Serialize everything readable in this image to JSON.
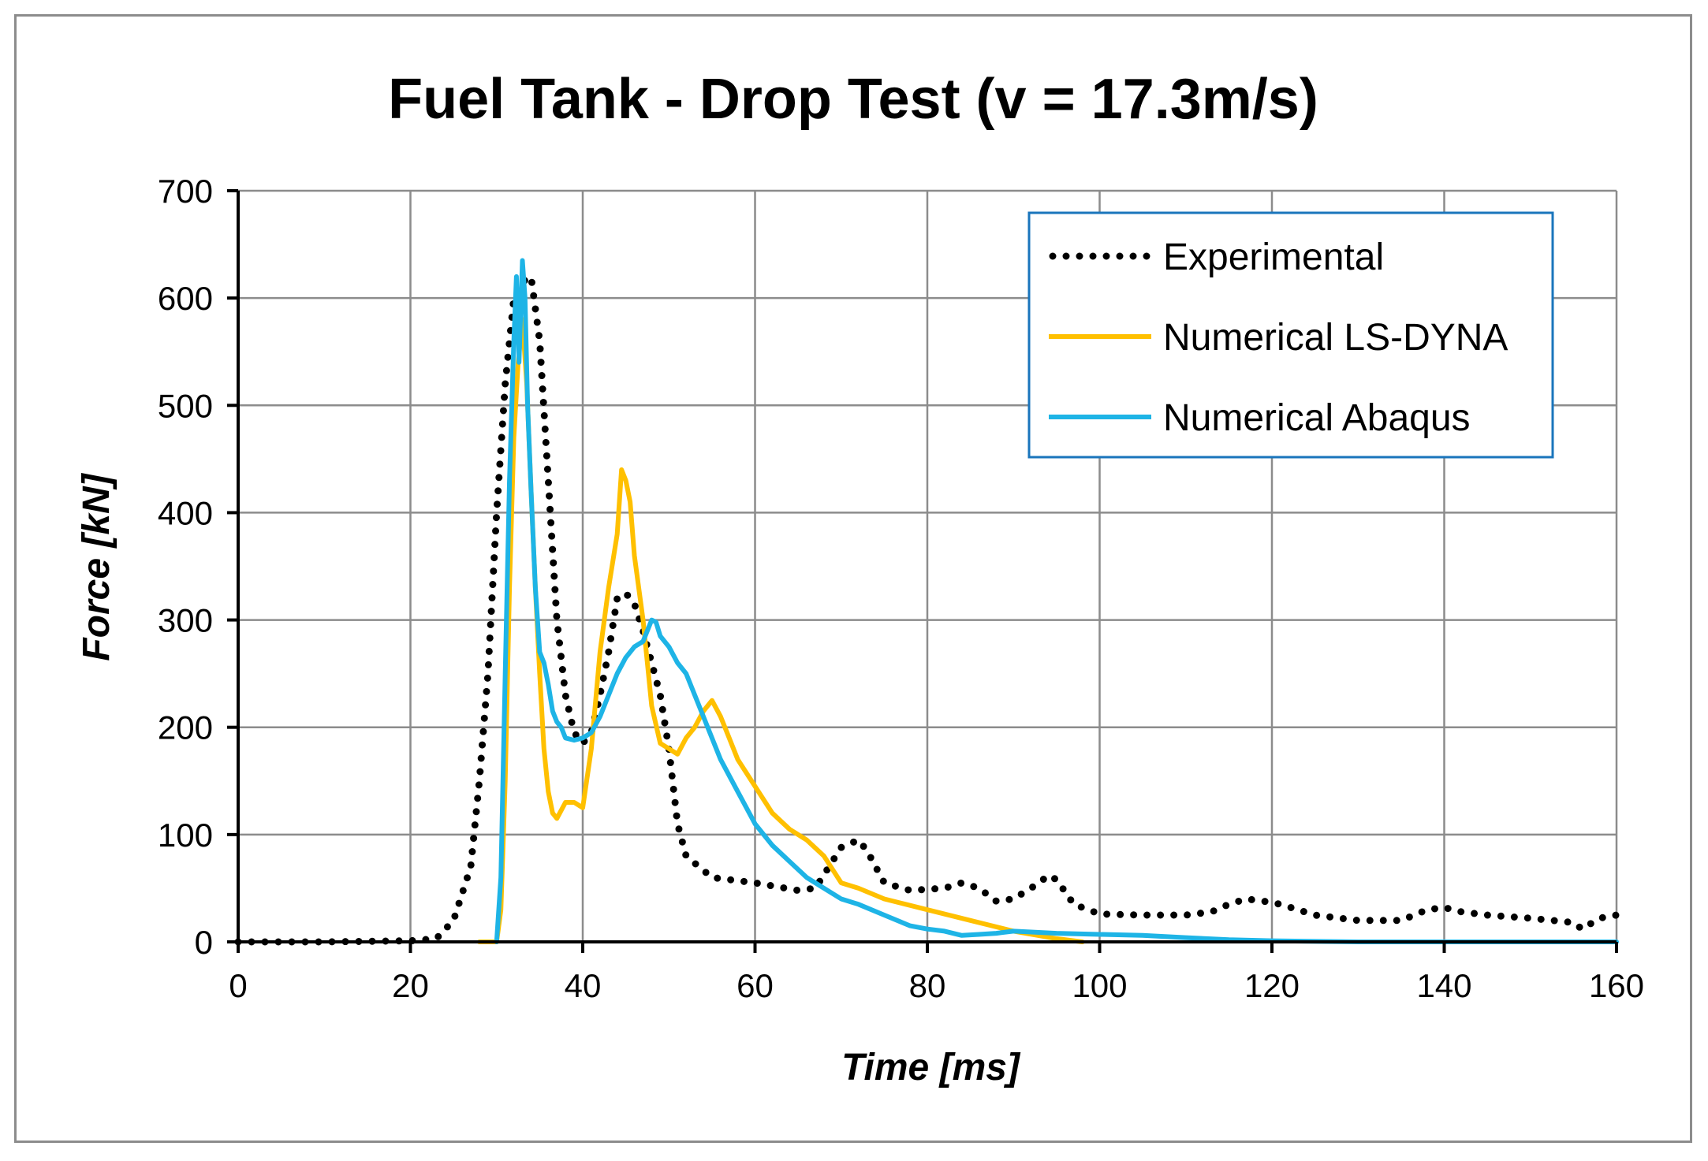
{
  "chart_data": {
    "type": "line",
    "title": "Fuel Tank - Drop Test (v = 17.3m/s)",
    "xlabel": "Time [ms]",
    "ylabel": "Force [kN]",
    "xlim": [
      0,
      160
    ],
    "ylim": [
      0,
      700
    ],
    "xticks": [
      "0",
      "20",
      "40",
      "60",
      "80",
      "100",
      "120",
      "140",
      "160"
    ],
    "yticks": [
      "0",
      "100",
      "200",
      "300",
      "400",
      "500",
      "600",
      "700"
    ],
    "grid": true,
    "legend_position": "top-right",
    "series": [
      {
        "name": "Experimental",
        "style": "dotted",
        "color": "#000000",
        "x": [
          0,
          10,
          20,
          23,
          25,
          27,
          28,
          29,
          30,
          31,
          32,
          33,
          34,
          35,
          36,
          37,
          38,
          39,
          40,
          41,
          42,
          43,
          44,
          45,
          46,
          47,
          48,
          49,
          50,
          51,
          52,
          55,
          60,
          65,
          67,
          70,
          72,
          73,
          75,
          78,
          82,
          84,
          86,
          88,
          90,
          93,
          94,
          95,
          97,
          100,
          105,
          110,
          113,
          115,
          117,
          119,
          121,
          125,
          130,
          135,
          138,
          140,
          142,
          145,
          150,
          155,
          156,
          158,
          160
        ],
        "y": [
          0,
          0,
          1,
          3,
          20,
          70,
          150,
          250,
          400,
          520,
          600,
          615,
          620,
          560,
          430,
          300,
          230,
          195,
          185,
          195,
          230,
          270,
          320,
          325,
          315,
          290,
          260,
          230,
          180,
          110,
          80,
          60,
          55,
          48,
          50,
          88,
          95,
          85,
          55,
          48,
          50,
          55,
          50,
          38,
          40,
          55,
          62,
          58,
          35,
          26,
          25,
          25,
          28,
          35,
          40,
          38,
          35,
          25,
          20,
          20,
          30,
          32,
          28,
          25,
          22,
          18,
          12,
          22,
          25
        ]
      },
      {
        "name": "Numerical LS-DYNA",
        "style": "solid",
        "color": "#FFC000",
        "x": [
          28,
          30,
          30.5,
          31,
          31.5,
          32,
          32.5,
          33,
          33.5,
          34,
          34.5,
          35,
          35.5,
          36,
          36.5,
          37,
          38,
          39,
          40,
          41,
          42,
          43,
          44,
          44.5,
          45,
          45.5,
          46,
          47,
          48,
          49,
          50,
          51,
          52,
          53,
          54,
          55,
          56,
          57,
          58,
          60,
          62,
          64,
          66,
          68,
          70,
          72,
          75,
          80,
          85,
          90,
          95,
          97,
          98
        ],
        "y": [
          0,
          0,
          30,
          150,
          330,
          470,
          540,
          580,
          520,
          420,
          330,
          250,
          180,
          140,
          120,
          115,
          130,
          130,
          125,
          180,
          270,
          330,
          380,
          440,
          430,
          410,
          360,
          300,
          220,
          185,
          180,
          175,
          190,
          200,
          215,
          225,
          210,
          190,
          170,
          145,
          120,
          105,
          95,
          80,
          55,
          50,
          40,
          30,
          20,
          10,
          3,
          1,
          0
        ]
      },
      {
        "name": "Numerical Abaqus",
        "style": "solid",
        "color": "#1EB4E6",
        "x": [
          30,
          30.5,
          31,
          31.5,
          32,
          32.3,
          32.6,
          33,
          33.3,
          33.6,
          34,
          34.5,
          35,
          35.5,
          36,
          36.5,
          37,
          37.5,
          38,
          39,
          40,
          41,
          42,
          43,
          44,
          45,
          46,
          47,
          48,
          48.5,
          49,
          50,
          51,
          52,
          54,
          56,
          58,
          60,
          62,
          64,
          66,
          68,
          70,
          72,
          75,
          78,
          80,
          82,
          84,
          86,
          88,
          90,
          95,
          100,
          105,
          110,
          115,
          120,
          130,
          140,
          150,
          160
        ],
        "y": [
          0,
          60,
          250,
          430,
          560,
          620,
          540,
          635,
          600,
          500,
          420,
          330,
          270,
          260,
          240,
          215,
          205,
          200,
          190,
          188,
          190,
          195,
          210,
          230,
          250,
          265,
          275,
          280,
          300,
          298,
          285,
          275,
          260,
          250,
          210,
          170,
          140,
          110,
          90,
          75,
          60,
          50,
          40,
          35,
          25,
          15,
          12,
          10,
          6,
          7,
          8,
          10,
          8,
          7,
          6,
          4,
          2,
          1,
          0,
          0,
          0,
          0
        ]
      }
    ]
  }
}
